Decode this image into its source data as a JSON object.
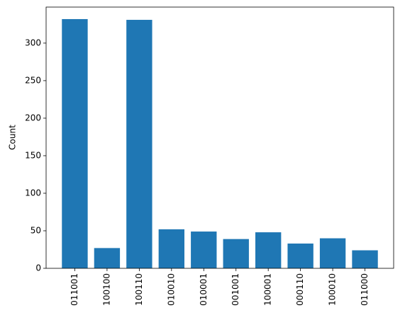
{
  "chart_data": {
    "type": "bar",
    "y_label": "Count",
    "categories": [
      "011001",
      "100100",
      "100110",
      "010010",
      "010001",
      "001001",
      "100001",
      "000110",
      "100010",
      "011000"
    ],
    "values": [
      332,
      27,
      331,
      52,
      49,
      39,
      48,
      33,
      40,
      24
    ],
    "color": "#1f77b4",
    "ylim": [
      0,
      348
    ],
    "yticks": [
      0,
      50,
      100,
      150,
      200,
      250,
      300
    ],
    "grid": false
  }
}
